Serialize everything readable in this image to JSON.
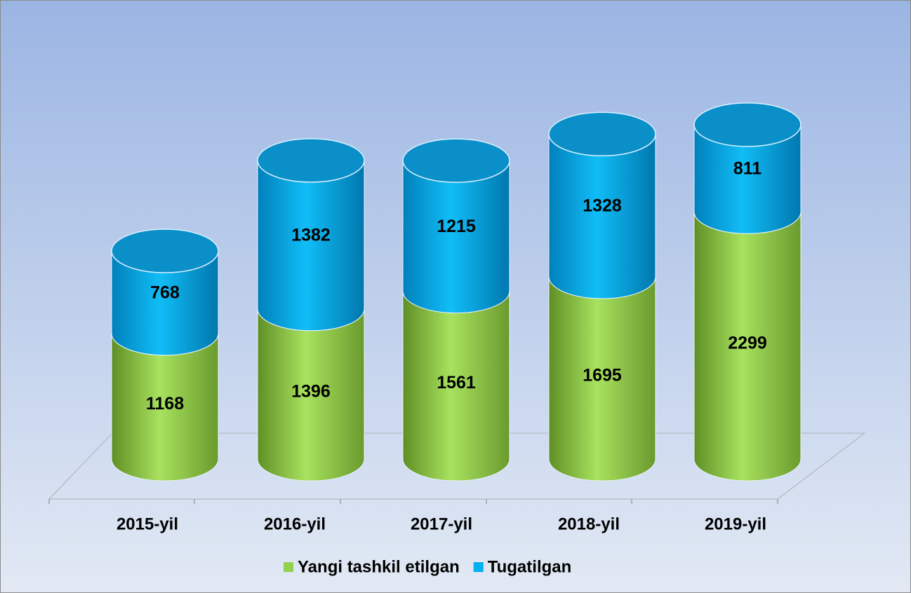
{
  "chart_data": {
    "type": "bar3d_cylinder_stacked",
    "categories": [
      "2015-yil",
      "2016-yil",
      "2017-yil",
      "2018-yil",
      "2019-yil"
    ],
    "series": [
      {
        "name": "Yangi tashkil etilgan",
        "color": "#92d050",
        "values": [
          1168,
          1396,
          1561,
          1695,
          2299
        ]
      },
      {
        "name": "Tugatilgan",
        "color": "#00b0f0",
        "values": [
          768,
          1382,
          1215,
          1328,
          811
        ]
      }
    ],
    "legend": "bottom"
  }
}
